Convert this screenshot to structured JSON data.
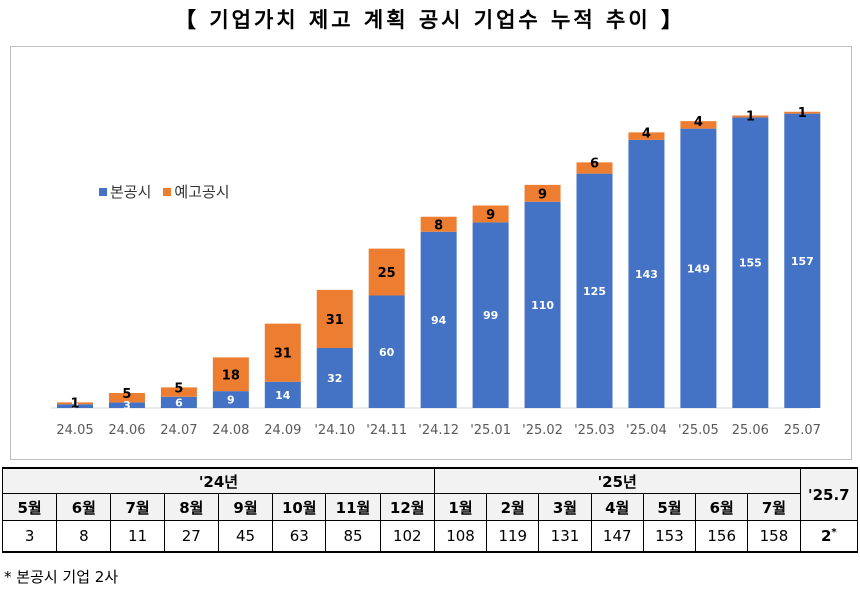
{
  "title": "【 기업가치 제고 계획 공시 기업수 누적 추이 】",
  "chart_data": {
    "type": "bar",
    "stacked": true,
    "categories": [
      "24.05",
      "24.06",
      "24.07",
      "24.08",
      "24.09",
      "'24.10",
      "'24.11",
      "'24.12",
      "'25.01",
      "'25.02",
      "'25.03",
      "'25.04",
      "'25.05",
      "25.06",
      "25.07"
    ],
    "series": [
      {
        "name": "본공시",
        "color": "#4472c4",
        "values": [
          2,
          3,
          6,
          9,
          14,
          32,
          60,
          94,
          99,
          110,
          125,
          143,
          149,
          155,
          157
        ]
      },
      {
        "name": "예고공시",
        "color": "#ed7d31",
        "values": [
          1,
          5,
          5,
          18,
          31,
          31,
          25,
          8,
          9,
          9,
          6,
          4,
          4,
          1,
          1
        ]
      }
    ],
    "legend_position": "upper-left",
    "grid": false
  },
  "table": {
    "year_2024": "'24년",
    "year_2025": "'25년",
    "last_col": "'25.7",
    "months_2024": [
      "5월",
      "6월",
      "7월",
      "8월",
      "9월",
      "10월",
      "11월",
      "12월"
    ],
    "months_2025": [
      "1월",
      "2월",
      "3월",
      "4월",
      "5월",
      "6월",
      "7월"
    ],
    "values": [
      "3",
      "8",
      "11",
      "27",
      "45",
      "63",
      "85",
      "102",
      "108",
      "119",
      "131",
      "147",
      "153",
      "156",
      "158"
    ],
    "last_value": "2",
    "last_mark": "*"
  },
  "footnote": "*  본공시 기업 2사"
}
